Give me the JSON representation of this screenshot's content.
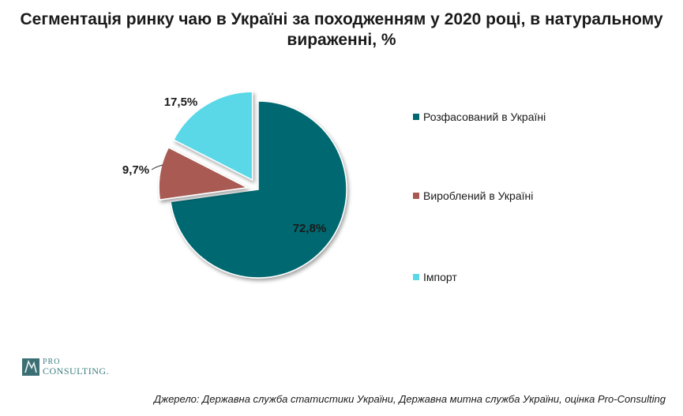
{
  "chart_data": {
    "type": "pie",
    "title": "Сегментація ринку чаю в Україні за походженням у 2020 році, в натуральному вираженні, %",
    "title_lines": [
      "Сегментація ринку чаю в Україні за походженням у 2020 році, в натуральному",
      "вираженні, %"
    ],
    "legend_position": "right",
    "categories": [
      "Розфасований в Україні",
      "Вироблений в Україні",
      "Імпорт"
    ],
    "values": [
      72.8,
      9.7,
      17.5
    ],
    "data_labels": [
      "72,8%",
      "9,7%",
      "17,5%"
    ],
    "colors": [
      "#006870",
      "#a85a52",
      "#5ad8e8"
    ],
    "exploded": [
      false,
      true,
      true
    ]
  },
  "footer": {
    "source": "Джерело: Державна служба статистики України, Державна митна служба України, оцінка Pro-Consulting",
    "logo_text_pro": "PRO",
    "logo_text_consulting": "CONSULTING."
  }
}
